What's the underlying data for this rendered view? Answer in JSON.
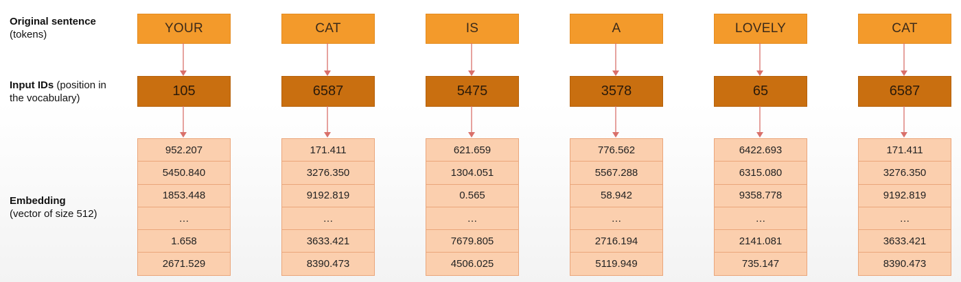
{
  "labels": {
    "tokens_bold": "Original sentence",
    "tokens_sub": "(tokens)",
    "ids_bold": "Input IDs",
    "ids_rest": " (position in the vocabulary)",
    "emb_bold": "Embedding",
    "emb_sub": "(vector of size 512)"
  },
  "columns": [
    {
      "token": "YOUR",
      "id": "105",
      "embedding": [
        "952.207",
        "5450.840",
        "1853.448",
        "…",
        "1.658",
        "2671.529"
      ]
    },
    {
      "token": "CAT",
      "id": "6587",
      "embedding": [
        "171.411",
        "3276.350",
        "9192.819",
        "…",
        "3633.421",
        "8390.473"
      ]
    },
    {
      "token": "IS",
      "id": "5475",
      "embedding": [
        "621.659",
        "1304.051",
        "0.565",
        "…",
        "7679.805",
        "4506.025"
      ]
    },
    {
      "token": "A",
      "id": "3578",
      "embedding": [
        "776.562",
        "5567.288",
        "58.942",
        "…",
        "2716.194",
        "5119.949"
      ]
    },
    {
      "token": "LOVELY",
      "id": "65",
      "embedding": [
        "6422.693",
        "6315.080",
        "9358.778",
        "…",
        "2141.081",
        "735.147"
      ]
    },
    {
      "token": "CAT",
      "id": "6587",
      "embedding": [
        "171.411",
        "3276.350",
        "9192.819",
        "…",
        "3633.421",
        "8390.473"
      ]
    }
  ],
  "colors": {
    "token_box": "#f39a2b",
    "id_box": "#c96f10",
    "embedding_cell": "#fbcfae",
    "arrow": "#d9706a"
  }
}
